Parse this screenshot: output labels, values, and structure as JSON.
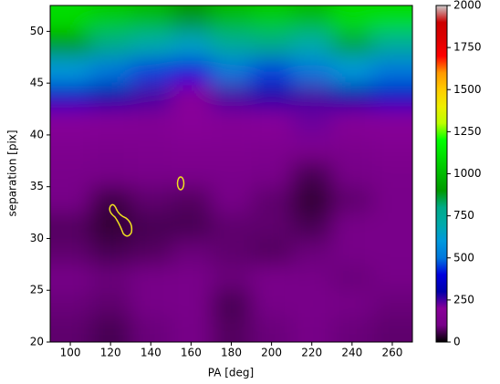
{
  "chart_data": {
    "type": "heatmap",
    "xlabel": "PA [deg]",
    "ylabel": "separation [pix]",
    "colormap": "nipy_spectral",
    "x": [
      100,
      120,
      140,
      160,
      180,
      200,
      220,
      240,
      260
    ],
    "y": [
      21.25,
      23.75,
      26.25,
      28.75,
      31.25,
      33.75,
      36.25,
      38.75,
      41.25,
      43.75,
      46.25,
      48.75,
      51.25
    ],
    "z": [
      [
        80,
        60,
        90,
        100,
        70,
        90,
        100,
        90,
        80
      ],
      [
        90,
        80,
        100,
        110,
        60,
        100,
        110,
        100,
        90
      ],
      [
        100,
        90,
        100,
        110,
        90,
        110,
        100,
        90,
        100
      ],
      [
        80,
        60,
        70,
        90,
        80,
        70,
        90,
        100,
        110
      ],
      [
        70,
        40,
        60,
        60,
        80,
        80,
        60,
        100,
        110
      ],
      [
        100,
        50,
        80,
        70,
        100,
        80,
        40,
        80,
        110
      ],
      [
        120,
        100,
        110,
        120,
        120,
        110,
        60,
        100,
        120
      ],
      [
        140,
        130,
        140,
        150,
        150,
        140,
        140,
        130,
        150
      ],
      [
        200,
        180,
        170,
        200,
        180,
        200,
        220,
        190,
        200
      ],
      [
        350,
        300,
        250,
        200,
        250,
        280,
        250,
        300,
        350
      ],
      [
        600,
        500,
        450,
        400,
        500,
        450,
        500,
        600,
        500
      ],
      [
        900,
        800,
        700,
        650,
        750,
        800,
        700,
        850,
        750
      ],
      [
        1100,
        1050,
        1000,
        900,
        1000,
        1050,
        1000,
        1100,
        1100
      ]
    ],
    "xlim": [
      90,
      270
    ],
    "ylim": [
      20,
      52.5
    ],
    "xticks": [
      100,
      120,
      140,
      160,
      180,
      200,
      220,
      240,
      260
    ],
    "yticks": [
      20,
      25,
      30,
      35,
      40,
      45,
      50
    ],
    "colorbar": {
      "lim": [
        0,
        2000
      ],
      "ticks": [
        0,
        250,
        500,
        750,
        1000,
        1250,
        1500,
        1750,
        2000
      ]
    }
  }
}
